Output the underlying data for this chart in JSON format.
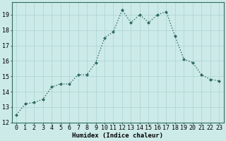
{
  "x": [
    0,
    1,
    2,
    3,
    4,
    5,
    6,
    7,
    8,
    9,
    10,
    11,
    12,
    13,
    14,
    15,
    16,
    17,
    18,
    19,
    20,
    21,
    22,
    23
  ],
  "y": [
    12.5,
    13.2,
    13.3,
    13.5,
    14.3,
    14.5,
    14.5,
    15.1,
    15.1,
    15.9,
    17.5,
    17.9,
    19.3,
    18.5,
    19.0,
    18.5,
    19.0,
    19.2,
    17.6,
    16.1,
    15.9,
    15.1,
    14.8,
    14.7
  ],
  "line_color": "#2d6b5e",
  "marker": "D",
  "marker_size": 2.0,
  "line_width": 1.0,
  "bg_color": "#cceae8",
  "grid_color": "#aad4d0",
  "xlabel": "Humidex (Indice chaleur)",
  "xlim": [
    -0.5,
    23.5
  ],
  "ylim": [
    12,
    19.8
  ],
  "yticks": [
    12,
    13,
    14,
    15,
    16,
    17,
    18,
    19
  ],
  "xticks": [
    0,
    1,
    2,
    3,
    4,
    5,
    6,
    7,
    8,
    9,
    10,
    11,
    12,
    13,
    14,
    15,
    16,
    17,
    18,
    19,
    20,
    21,
    22,
    23
  ],
  "xlabel_fontsize": 6.5,
  "tick_fontsize": 6.0
}
